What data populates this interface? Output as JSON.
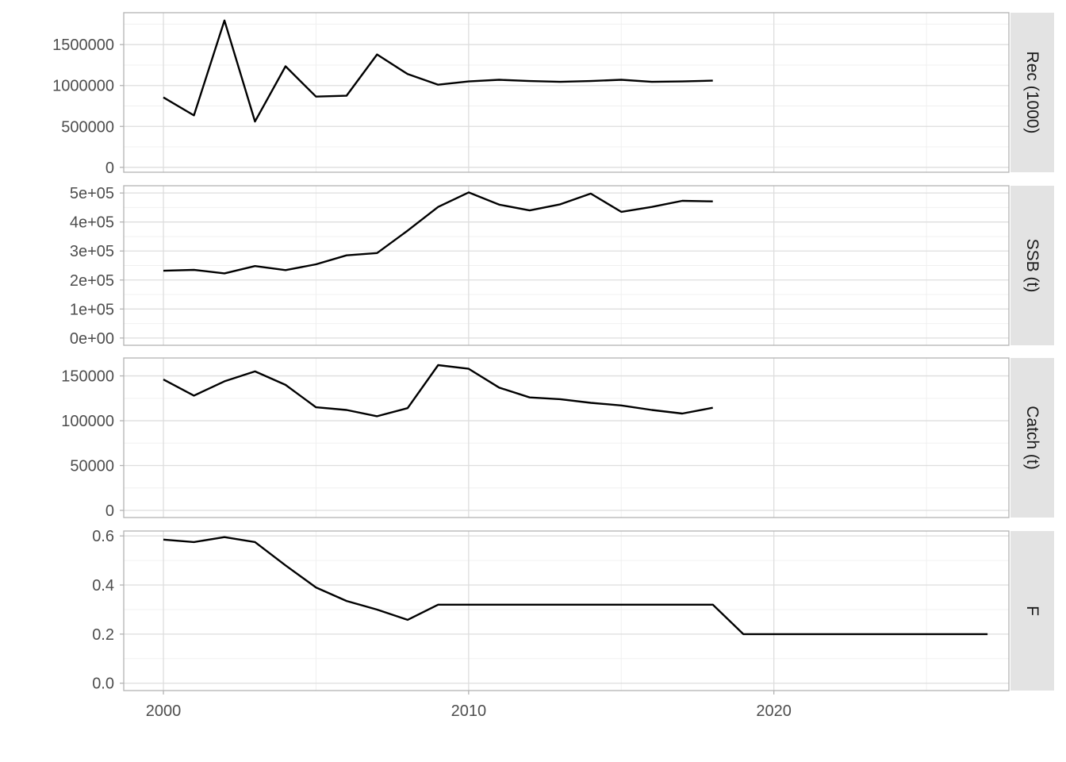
{
  "chart_data": {
    "type": "line",
    "layout": "faceted-vertical",
    "theme": "light",
    "grid": true,
    "legend": "none",
    "line_color": "#000000",
    "strip_fill": "#e3e3e3",
    "panel_border": "#b3b3b3",
    "grid_major": "#dedede",
    "grid_minor": "#f0f0f0",
    "xlim": [
      1998.7,
      2027.7
    ],
    "x_ticks": [
      {
        "value": 2000,
        "label": "2000"
      },
      {
        "value": 2010,
        "label": "2010"
      },
      {
        "value": 2020,
        "label": "2020"
      }
    ],
    "panels": [
      {
        "strip": "Rec (1000)",
        "ylim": [
          -60000,
          1890000
        ],
        "y_ticks": [
          {
            "value": 0,
            "label": "0"
          },
          {
            "value": 500000,
            "label": "500000"
          },
          {
            "value": 1000000,
            "label": "1000000"
          },
          {
            "value": 1500000,
            "label": "1500000"
          }
        ],
        "x": [
          2000,
          2001,
          2002,
          2003,
          2004,
          2005,
          2006,
          2007,
          2008,
          2009,
          2010,
          2011,
          2012,
          2013,
          2014,
          2015,
          2016,
          2017,
          2018
        ],
        "y": [
          855000,
          635000,
          1795000,
          560000,
          1235000,
          865000,
          875000,
          1380000,
          1140000,
          1010000,
          1050000,
          1070000,
          1055000,
          1045000,
          1055000,
          1070000,
          1045000,
          1050000,
          1060000
        ]
      },
      {
        "strip": "SSB (t)",
        "ylim": [
          -25000,
          525000
        ],
        "y_ticks": [
          {
            "value": 0,
            "label": "0e+00"
          },
          {
            "value": 100000,
            "label": "1e+05"
          },
          {
            "value": 200000,
            "label": "2e+05"
          },
          {
            "value": 300000,
            "label": "3e+05"
          },
          {
            "value": 400000,
            "label": "4e+05"
          },
          {
            "value": 500000,
            "label": "5e+05"
          }
        ],
        "x": [
          2000,
          2001,
          2002,
          2003,
          2004,
          2005,
          2006,
          2007,
          2008,
          2009,
          2010,
          2011,
          2012,
          2013,
          2014,
          2015,
          2016,
          2017,
          2018
        ],
        "y": [
          232000,
          235000,
          223000,
          248000,
          234000,
          254000,
          285000,
          293000,
          370000,
          452000,
          502000,
          460000,
          440000,
          461000,
          498000,
          435000,
          452000,
          473000,
          471000
        ]
      },
      {
        "strip": "Catch (t)",
        "ylim": [
          -8000,
          170000
        ],
        "y_ticks": [
          {
            "value": 0,
            "label": "0"
          },
          {
            "value": 50000,
            "label": "50000"
          },
          {
            "value": 100000,
            "label": "100000"
          },
          {
            "value": 150000,
            "label": "150000"
          }
        ],
        "x": [
          2000,
          2001,
          2002,
          2003,
          2004,
          2005,
          2006,
          2007,
          2008,
          2009,
          2010,
          2011,
          2012,
          2013,
          2014,
          2015,
          2016,
          2017,
          2018
        ],
        "y": [
          146000,
          128000,
          144000,
          155000,
          140000,
          115000,
          112000,
          105000,
          114000,
          162000,
          158000,
          137000,
          126000,
          124000,
          120000,
          117000,
          112000,
          108000,
          114500
        ]
      },
      {
        "strip": "F",
        "ylim": [
          -0.03,
          0.62
        ],
        "y_ticks": [
          {
            "value": 0,
            "label": "0.0"
          },
          {
            "value": 0.2,
            "label": "0.2"
          },
          {
            "value": 0.4,
            "label": "0.4"
          },
          {
            "value": 0.6,
            "label": "0.6"
          }
        ],
        "x": [
          2000,
          2001,
          2002,
          2003,
          2004,
          2005,
          2006,
          2007,
          2008,
          2009,
          2010,
          2011,
          2012,
          2013,
          2014,
          2015,
          2016,
          2017,
          2018,
          2019,
          2020,
          2021,
          2022,
          2023,
          2024,
          2025,
          2026,
          2027
        ],
        "y": [
          0.585,
          0.575,
          0.595,
          0.575,
          0.48,
          0.39,
          0.335,
          0.3,
          0.258,
          0.32,
          0.32,
          0.32,
          0.32,
          0.32,
          0.32,
          0.32,
          0.32,
          0.32,
          0.32,
          0.2,
          0.2,
          0.2,
          0.2,
          0.2,
          0.2,
          0.2,
          0.2,
          0.2
        ]
      }
    ]
  }
}
